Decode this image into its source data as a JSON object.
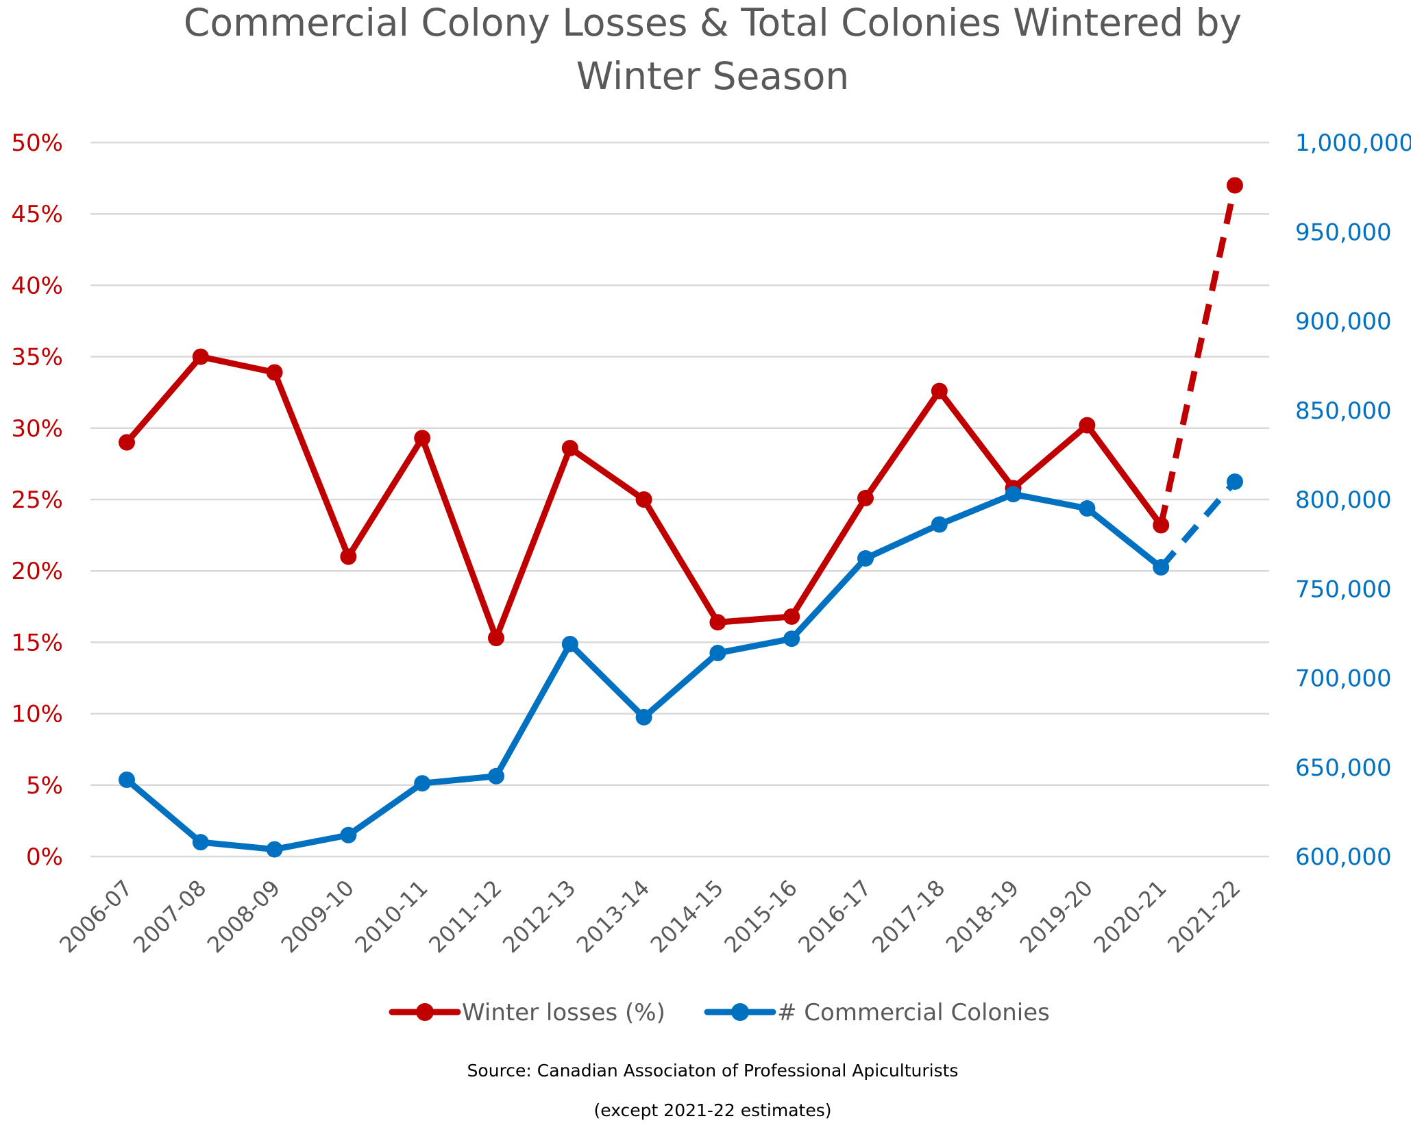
{
  "chart_data": {
    "type": "line",
    "title_lines": [
      "Commercial Colony Losses & Total Colonies Wintered by",
      "Winter Season"
    ],
    "categories": [
      "2006-07",
      "2007-08",
      "2008-09",
      "2009-10",
      "2010-11",
      "2011-12",
      "2012-13",
      "2013-14",
      "2014-15",
      "2015-16",
      "2016-17",
      "2017-18",
      "2018-19",
      "2019-20",
      "2020-21",
      "2021-22"
    ],
    "y_left": {
      "ticks": [
        "0%",
        "5%",
        "10%",
        "15%",
        "20%",
        "25%",
        "30%",
        "35%",
        "40%",
        "45%",
        "50%"
      ],
      "ylim": [
        0,
        50
      ],
      "color": "#c00000"
    },
    "y_right": {
      "ticks": [
        "600,000",
        "650,000",
        "700,000",
        "750,000",
        "800,000",
        "850,000",
        "900,000",
        "950,000",
        "1,000,000"
      ],
      "ylim": [
        600000,
        1000000
      ],
      "color": "#0070c0"
    },
    "series": [
      {
        "name": "Winter losses (%)",
        "axis": "left",
        "color": "#c00000",
        "values": [
          29.0,
          35.0,
          33.9,
          21.0,
          29.3,
          15.3,
          28.6,
          25.0,
          16.4,
          16.8,
          25.1,
          32.6,
          25.8,
          30.2,
          23.2,
          47.0
        ],
        "dashed_from_index": 14
      },
      {
        "name": "# Commercial Colonies",
        "axis": "right",
        "color": "#0070c0",
        "values": [
          643000,
          608000,
          604000,
          612000,
          641000,
          645000,
          719000,
          678000,
          714000,
          722000,
          767000,
          786000,
          803000,
          795000,
          762000,
          810000
        ],
        "dashed_from_index": 14
      }
    ],
    "grid": true,
    "legend_position": "bottom",
    "source_lines": [
      "Source: Canadian Associaton of Professional Apiculturists",
      "(except 2021-22 estimates)"
    ]
  }
}
